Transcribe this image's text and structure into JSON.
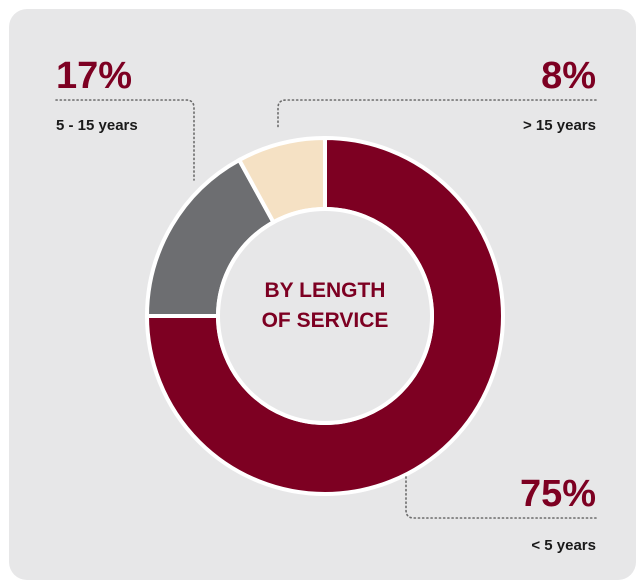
{
  "chart_data": {
    "type": "pie",
    "title": "BY LENGTH OF SERVICE",
    "title_lines": [
      "BY LENGTH",
      "OF SERVICE"
    ],
    "slices": [
      {
        "label": "< 5 years",
        "value": 75,
        "display": "75%",
        "color": "#7d0022"
      },
      {
        "label": "5 - 15 years",
        "value": 17,
        "display": "17%",
        "color": "#6d6e71"
      },
      {
        "label": "> 15 years",
        "value": 8,
        "display": "8%",
        "color": "#f5e1c4"
      }
    ],
    "donut": true,
    "background": "#e7e7e8",
    "accent": "#7d0022"
  }
}
